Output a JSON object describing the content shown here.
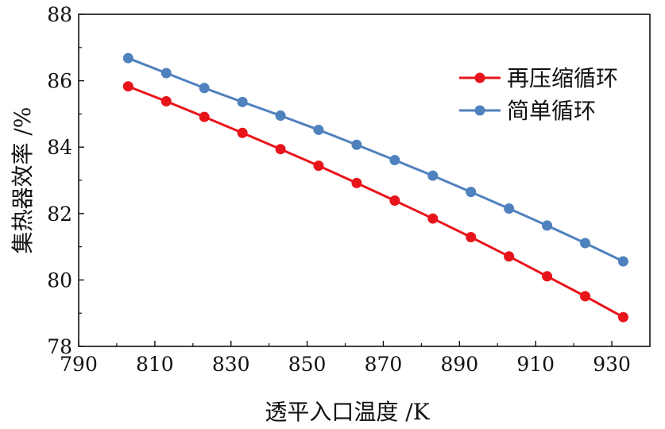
{
  "chart_data": {
    "type": "line",
    "xlabel": "透平入口温度 /K",
    "ylabel": "集热器效率 /%",
    "xlim": [
      790,
      940
    ],
    "ylim": [
      78,
      88
    ],
    "x_ticks": [
      790,
      810,
      830,
      850,
      870,
      890,
      910,
      930
    ],
    "y_ticks": [
      78,
      80,
      82,
      84,
      86,
      88
    ],
    "x_tick_labels": [
      "790",
      "810",
      "830",
      "850",
      "870",
      "890",
      "910",
      "930"
    ],
    "y_tick_labels": [
      "78",
      "80",
      "82",
      "84",
      "86",
      "88"
    ],
    "grid": false,
    "legend_position": "top-right",
    "x": [
      803,
      813,
      823,
      833,
      843,
      853,
      863,
      873,
      883,
      893,
      903,
      913,
      923,
      933
    ],
    "series": [
      {
        "name": "再压缩循环",
        "color": "#e8141c",
        "values": [
          85.83,
          85.38,
          84.91,
          84.43,
          83.94,
          83.44,
          82.92,
          82.39,
          81.85,
          81.29,
          80.71,
          80.11,
          79.51,
          78.88
        ]
      },
      {
        "name": "简单循环",
        "color": "#4f81bd",
        "values": [
          86.68,
          86.23,
          85.78,
          85.36,
          84.95,
          84.52,
          84.07,
          83.61,
          83.14,
          82.65,
          82.15,
          81.64,
          81.11,
          80.56
        ]
      }
    ]
  }
}
